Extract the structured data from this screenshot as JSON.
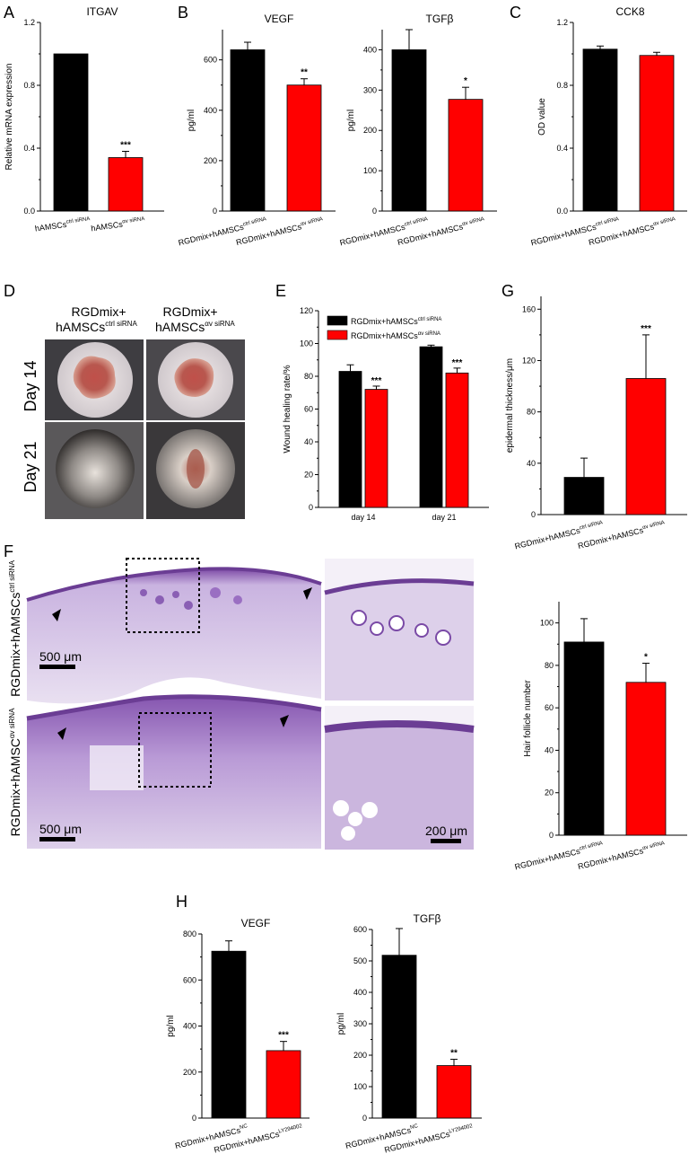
{
  "panel_labels": [
    "A",
    "B",
    "C",
    "D",
    "E",
    "F",
    "G",
    "H"
  ],
  "colors": {
    "black": "#000000",
    "red": "#ff0000"
  },
  "panel_d": {
    "col_headers": [
      {
        "line1": "RGDmix+",
        "line2": "hAMSCs",
        "sup": "ctrl siRNA"
      },
      {
        "line1": "RGDmix+",
        "line2": "hAMSCs",
        "sup": "αv siRNA"
      }
    ],
    "row_labels": [
      "Day 14",
      "Day 21"
    ]
  },
  "panel_f": {
    "row_labels": [
      {
        "main": "RGDmix+hAMSCs",
        "sup": "ctrl siRNA"
      },
      {
        "main": "RGDmix+hAMSC",
        "sup": "αv siRNA"
      }
    ],
    "scale_bars": [
      "500 μm",
      "500 μm",
      "200 μm"
    ]
  },
  "chart_data": [
    {
      "id": "itgav",
      "type": "bar",
      "title": "ITGAV",
      "ylabel": "Relative mRNA expression",
      "ylim": [
        0,
        1.2
      ],
      "yticks": [
        "0.0",
        "0.4",
        "0.8",
        "1.2"
      ],
      "categories": [
        {
          "main": "hAMSCs",
          "sup": "ctrl siRNA"
        },
        {
          "main": "hAMSCs",
          "sup": "αv siRNA"
        }
      ],
      "values": [
        1.0,
        0.34
      ],
      "errors": [
        0,
        0.04
      ],
      "significance": [
        "",
        "***"
      ]
    },
    {
      "id": "vegf_b",
      "type": "bar",
      "title": "VEGF",
      "ylabel": "pg/ml",
      "ylim": [
        0,
        720
      ],
      "yticks": [
        "0",
        "200",
        "400",
        "600"
      ],
      "categories": [
        {
          "main": "RGDmix+hAMSCs",
          "sup": "ctrl siRNA"
        },
        {
          "main": "RGDmix+hAMSCs",
          "sup": "αv siRNA"
        }
      ],
      "values": [
        640,
        500
      ],
      "errors": [
        30,
        25
      ],
      "significance": [
        "",
        "**"
      ]
    },
    {
      "id": "tgfb_b",
      "type": "bar",
      "title": "TGFβ",
      "ylabel": "pg/ml",
      "ylim": [
        0,
        450
      ],
      "yticks": [
        "0",
        "100",
        "200",
        "300",
        "400"
      ],
      "categories": [
        {
          "main": "RGDmix+hAMSCs",
          "sup": "ctrl siRNA"
        },
        {
          "main": "RGDmix+hAMSCs",
          "sup": "αv siRNA"
        }
      ],
      "values": [
        400,
        277
      ],
      "errors": [
        50,
        30
      ],
      "significance": [
        "",
        "*"
      ]
    },
    {
      "id": "cck8",
      "type": "bar",
      "title": "CCK8",
      "ylabel": "OD value",
      "ylim": [
        0,
        1.2
      ],
      "yticks": [
        "0.0",
        "0.4",
        "0.8",
        "1.2"
      ],
      "categories": [
        {
          "main": "RGDmix+hAMSCs",
          "sup": "ctrl siRNA"
        },
        {
          "main": "RGDmix+hAMSCs",
          "sup": "αv siRNA"
        }
      ],
      "values": [
        1.03,
        0.99
      ],
      "errors": [
        0.02,
        0.02
      ],
      "significance": [
        "",
        ""
      ]
    },
    {
      "id": "wound",
      "type": "bar",
      "title": "",
      "ylabel": "Wound healing rate/%",
      "ylim": [
        0,
        120
      ],
      "yticks": [
        "0",
        "20",
        "40",
        "60",
        "80",
        "100",
        "120"
      ],
      "categories": [
        {
          "main": "day 14",
          "sup": ""
        },
        {
          "main": "day 21",
          "sup": ""
        }
      ],
      "series": [
        {
          "name": "RGDmix+hAMSCs",
          "sup": "ctrl siRNA",
          "values": [
            83,
            98
          ],
          "errors": [
            4,
            1
          ]
        },
        {
          "name": "RGDmix+hAMSCs",
          "sup": "αv siRNA",
          "values": [
            72,
            82
          ],
          "errors": [
            2,
            3
          ],
          "significance": [
            "***",
            "***"
          ]
        }
      ]
    },
    {
      "id": "epidermal",
      "type": "bar",
      "title": "",
      "ylabel": "epidermal thickness/μm",
      "ylim": [
        0,
        170
      ],
      "yticks": [
        "0",
        "40",
        "80",
        "120",
        "160"
      ],
      "categories": [
        {
          "main": "RGDmix+hAMSCs",
          "sup": "ctrl siRNA"
        },
        {
          "main": "RGDmix+hAMSCs",
          "sup": "αv siRNA"
        }
      ],
      "values": [
        29,
        106
      ],
      "errors": [
        15,
        34
      ],
      "significance": [
        "",
        "***"
      ]
    },
    {
      "id": "hair",
      "type": "bar",
      "title": "",
      "ylabel": "Hair follicle number",
      "ylim": [
        0,
        110
      ],
      "yticks": [
        "0",
        "20",
        "40",
        "60",
        "80",
        "100"
      ],
      "categories": [
        {
          "main": "RGDmix+hAMSCs",
          "sup": "ctrl siRNA"
        },
        {
          "main": "RGDmix+hAMSCs",
          "sup": "αv siRNA"
        }
      ],
      "values": [
        91,
        72
      ],
      "errors": [
        11,
        9
      ],
      "significance": [
        "",
        "*"
      ]
    },
    {
      "id": "vegf_h",
      "type": "bar",
      "title": "VEGF",
      "ylabel": "pg/ml",
      "ylim": [
        0,
        800
      ],
      "yticks": [
        "0",
        "200",
        "400",
        "600",
        "800"
      ],
      "categories": [
        {
          "main": "RGDmix+hAMSCs",
          "sup": "NC"
        },
        {
          "main": "RGDmix+hAMSCs",
          "sup": "LY294002"
        }
      ],
      "values": [
        725,
        293
      ],
      "errors": [
        45,
        40
      ],
      "significance": [
        "",
        "***"
      ]
    },
    {
      "id": "tgfb_h",
      "type": "bar",
      "title": "TGFβ",
      "ylabel": "pg/ml",
      "ylim": [
        0,
        600
      ],
      "yticks": [
        "0",
        "100",
        "200",
        "300",
        "400",
        "500",
        "600"
      ],
      "categories": [
        {
          "main": "RGDmix+hAMSCs",
          "sup": "NC"
        },
        {
          "main": "RGDmix+hAMSCs",
          "sup": "LY294002"
        }
      ],
      "values": [
        518,
        167
      ],
      "errors": [
        85,
        20
      ],
      "significance": [
        "",
        "**"
      ]
    }
  ]
}
